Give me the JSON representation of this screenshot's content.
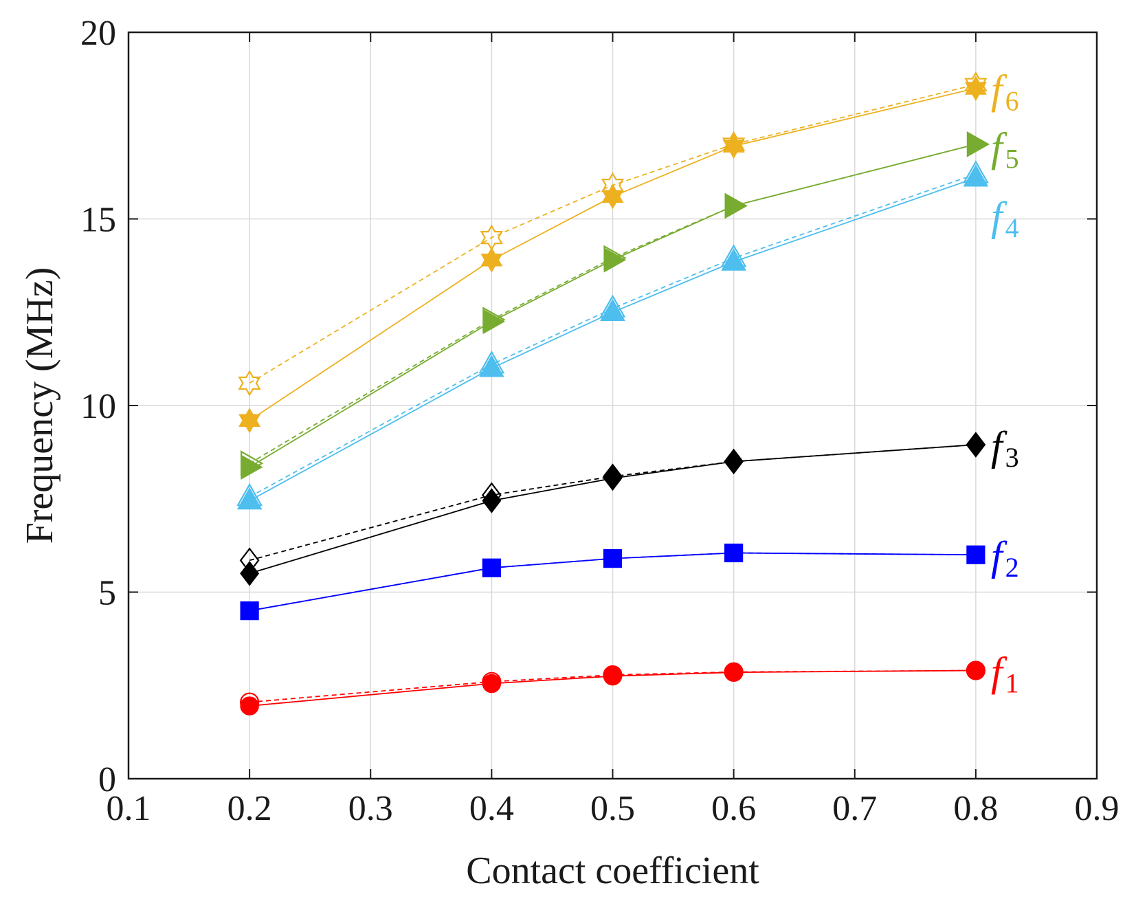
{
  "chart_data": {
    "type": "line",
    "title": "",
    "xlabel": "Contact coefficient",
    "ylabel": "Frequency (MHz)",
    "xlim": [
      0.1,
      0.9
    ],
    "ylim": [
      0,
      20
    ],
    "xticks": [
      "0.1",
      "0.2",
      "0.3",
      "0.4",
      "0.5",
      "0.6",
      "0.7",
      "0.8",
      "0.9"
    ],
    "yticks": [
      "0",
      "5",
      "10",
      "15",
      "20"
    ],
    "grid": true,
    "x": [
      0.2,
      0.4,
      0.5,
      0.6,
      0.8
    ],
    "series": [
      {
        "name": "f1",
        "base": "f",
        "sub": "1",
        "color": "#ff0000",
        "marker": "circle",
        "solid": [
          1.95,
          2.55,
          2.75,
          2.85,
          2.9
        ],
        "dashed": [
          2.05,
          2.6,
          2.78,
          2.86,
          2.9
        ]
      },
      {
        "name": "f2",
        "base": "f",
        "sub": "2",
        "color": "#0000ff",
        "marker": "square",
        "solid": [
          4.5,
          5.65,
          5.9,
          6.05,
          6.0
        ],
        "dashed": [
          4.5,
          5.65,
          5.9,
          6.05,
          6.0
        ]
      },
      {
        "name": "f3",
        "base": "f",
        "sub": "3",
        "color": "#000000",
        "marker": "diamond",
        "solid": [
          5.5,
          7.45,
          8.05,
          8.5,
          8.95
        ],
        "dashed": [
          5.85,
          7.6,
          8.1,
          8.5,
          8.95
        ]
      },
      {
        "name": "f4",
        "base": "f",
        "sub": "4",
        "color": "#4dbeee",
        "marker": "triangle-up",
        "solid": [
          7.45,
          11.0,
          12.5,
          13.85,
          16.1
        ],
        "dashed": [
          7.55,
          11.1,
          12.6,
          13.95,
          16.2
        ]
      },
      {
        "name": "f5",
        "base": "f",
        "sub": "5",
        "color": "#77ac30",
        "marker": "triangle-right",
        "solid": [
          8.35,
          12.25,
          13.9,
          15.35,
          17.0
        ],
        "dashed": [
          8.45,
          12.3,
          13.95,
          15.35,
          17.0
        ]
      },
      {
        "name": "f6",
        "base": "f",
        "sub": "6",
        "color": "#edb120",
        "marker": "hexagram",
        "solid": [
          9.6,
          13.9,
          15.6,
          16.95,
          18.5
        ],
        "dashed": [
          10.6,
          14.5,
          15.9,
          17.0,
          18.6
        ]
      }
    ]
  }
}
